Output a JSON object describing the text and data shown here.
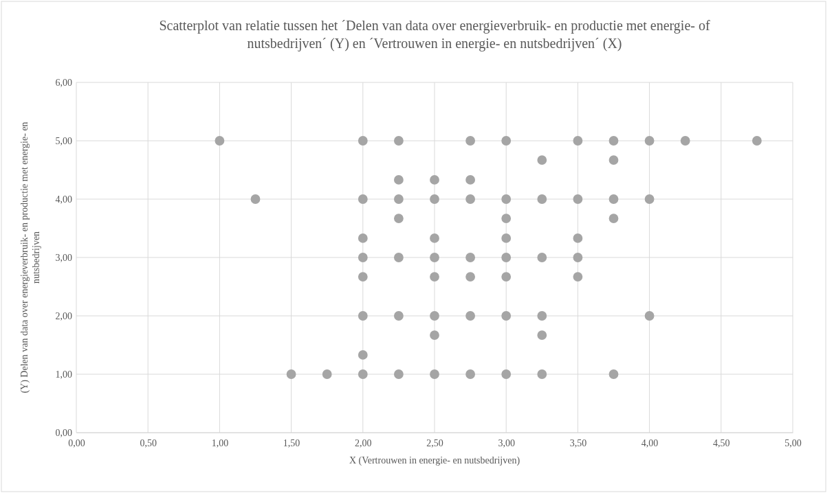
{
  "chart_data": {
    "type": "scatter",
    "title": "Scatterplot van relatie tussen het ´Delen van data over energieverbruik- en productie met energie- of nutsbedrijven´ (Y) en ´Vertrouwen in energie- en nutsbedrijven´ (X)",
    "xlabel": "X (Vertrouwen in energie- en nutsbedrijven)",
    "ylabel": "(Y) Delen van data over energieverbruik- en productie met energie- en nutsbedrijven",
    "x": [
      1,
      2,
      2.25,
      2.75,
      3,
      3.5,
      3.75,
      4,
      4.25,
      4.75,
      3.25,
      3.75,
      2.25,
      2.5,
      2.75,
      1.25,
      2,
      2.25,
      2.5,
      2.75,
      3,
      3.25,
      3.5,
      3.75,
      4,
      2.25,
      3,
      3.75,
      2,
      2.5,
      3,
      3.5,
      2,
      2.25,
      2.5,
      2.75,
      3,
      3.25,
      3.5,
      2,
      2.5,
      2.75,
      3,
      3.5,
      2,
      2.25,
      2.5,
      2.75,
      3,
      3.25,
      4,
      2.5,
      3.25,
      2,
      1.5,
      1.75,
      2,
      2.25,
      2.5,
      2.75,
      3,
      3.25,
      3.75
    ],
    "series": [
      {
        "color": "#a5a5a5",
        "values": [
          5,
          5,
          5,
          5,
          5,
          5,
          5,
          5,
          5,
          5,
          4.67,
          4.67,
          4.33,
          4.33,
          4.33,
          4,
          4,
          4,
          4,
          4,
          4,
          4,
          4,
          4,
          4,
          3.67,
          3.67,
          3.67,
          3.33,
          3.33,
          3.33,
          3.33,
          3,
          3,
          3,
          3,
          3,
          3,
          3,
          2.67,
          2.67,
          2.67,
          2.67,
          2.67,
          2,
          2,
          2,
          2,
          2,
          2,
          2,
          1.67,
          1.67,
          1.33,
          1,
          1,
          1,
          1,
          1,
          1,
          1,
          1,
          1
        ]
      }
    ],
    "xlim": [
      0,
      5
    ],
    "ylim": [
      0,
      6
    ],
    "xticks": [
      {
        "value": 0,
        "label": "0,00"
      },
      {
        "value": 0.5,
        "label": "0,50"
      },
      {
        "value": 1,
        "label": "1,00"
      },
      {
        "value": 1.5,
        "label": "1,50"
      },
      {
        "value": 2,
        "label": "2,00"
      },
      {
        "value": 2.5,
        "label": "2,50"
      },
      {
        "value": 3,
        "label": "3,00"
      },
      {
        "value": 3.5,
        "label": "3,50"
      },
      {
        "value": 4,
        "label": "4,00"
      },
      {
        "value": 4.5,
        "label": "4,50"
      },
      {
        "value": 5,
        "label": "5,00"
      }
    ],
    "yticks": [
      {
        "value": 0,
        "label": "0,00"
      },
      {
        "value": 1,
        "label": "1,00"
      },
      {
        "value": 2,
        "label": "2,00"
      },
      {
        "value": 3,
        "label": "3,00"
      },
      {
        "value": 4,
        "label": "4,00"
      },
      {
        "value": 5,
        "label": "5,00"
      },
      {
        "value": 6,
        "label": "6,00"
      }
    ],
    "grid": true,
    "marker": "circle"
  }
}
